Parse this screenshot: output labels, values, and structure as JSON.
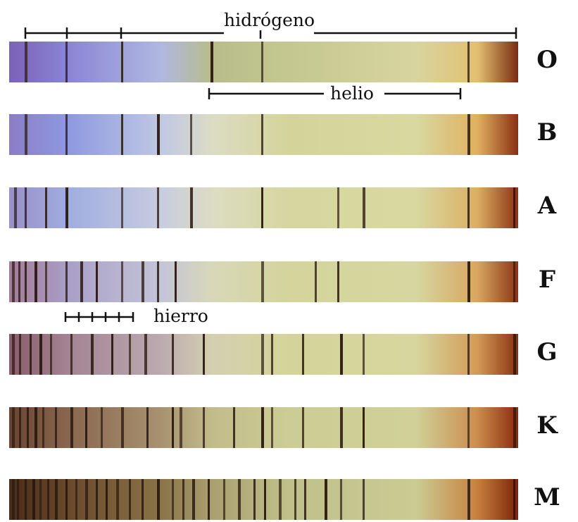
{
  "labels": {
    "hydrogen": "hidrógeno",
    "helium": "helio",
    "iron": "hierro"
  },
  "classes": [
    {
      "letter": "O",
      "colors": [
        "#7a62b8",
        "#8a86d6",
        "#b0b8e0",
        "#b8bc8a",
        "#c4c890",
        "#d8d4a0",
        "#e2c070",
        "#7a2c10"
      ],
      "lines": [
        0.03,
        0.11,
        0.22,
        0.395,
        0.495,
        0.9
      ]
    },
    {
      "letter": "B",
      "colors": [
        "#8c7cc8",
        "#8e9ae0",
        "#c0c8e4",
        "#dcdcc4",
        "#d4d49a",
        "#d8d8a0",
        "#e0b060",
        "#8a3012"
      ],
      "lines": [
        0.03,
        0.11,
        0.22,
        0.29,
        0.355,
        0.495,
        0.9
      ]
    },
    {
      "letter": "A",
      "colors": [
        "#9a90c8",
        "#a0aee0",
        "#c8cce0",
        "#dcdcc2",
        "#d6d6a0",
        "#d8d8a0",
        "#dcae62",
        "#8c3214"
      ],
      "lines": [
        0.01,
        0.03,
        0.07,
        0.11,
        0.22,
        0.29,
        0.355,
        0.495,
        0.645,
        0.695,
        0.9,
        0.99
      ]
    },
    {
      "letter": "F",
      "colors": [
        "#a47c98",
        "#aaa0c8",
        "#c4c4d8",
        "#d8d8b8",
        "#d4d49c",
        "#d6d6a0",
        "#d8a660",
        "#8a3414"
      ],
      "lines": [
        0.005,
        0.018,
        0.03,
        0.05,
        0.07,
        0.11,
        0.14,
        0.17,
        0.22,
        0.26,
        0.29,
        0.325,
        0.495,
        0.6,
        0.645,
        0.9,
        0.99
      ]
    },
    {
      "letter": "G",
      "colors": [
        "#8a5c6c",
        "#a48494",
        "#bcaab0",
        "#d4d0b0",
        "#d4d49a",
        "#d6d69e",
        "#d49a56",
        "#8a3010"
      ],
      "lines": [
        0.005,
        0.02,
        0.04,
        0.06,
        0.08,
        0.12,
        0.16,
        0.2,
        0.235,
        0.265,
        0.32,
        0.38,
        0.495,
        0.515,
        0.575,
        0.65,
        0.695,
        0.9,
        0.99
      ]
    },
    {
      "letter": "K",
      "colors": [
        "#6a4432",
        "#8a6850",
        "#a89270",
        "#c2bc8a",
        "#cccc96",
        "#d0d098",
        "#cc8c4c",
        "#8a2a0c"
      ],
      "lines": [
        0.005,
        0.02,
        0.035,
        0.05,
        0.065,
        0.09,
        0.12,
        0.15,
        0.18,
        0.22,
        0.27,
        0.32,
        0.335,
        0.38,
        0.44,
        0.495,
        0.515,
        0.575,
        0.65,
        0.695,
        0.9,
        0.99
      ]
    },
    {
      "letter": "M",
      "colors": [
        "#4a2c18",
        "#6a4a2c",
        "#8a7448",
        "#aaa070",
        "#c0c08a",
        "#cacc94",
        "#c8803e",
        "#7a2408"
      ],
      "lines": [
        0.005,
        0.015,
        0.03,
        0.045,
        0.06,
        0.075,
        0.09,
        0.11,
        0.13,
        0.15,
        0.17,
        0.19,
        0.21,
        0.235,
        0.26,
        0.29,
        0.32,
        0.34,
        0.36,
        0.39,
        0.42,
        0.45,
        0.48,
        0.5,
        0.53,
        0.56,
        0.58,
        0.62,
        0.65,
        0.695,
        0.9,
        0.99
      ]
    }
  ]
}
